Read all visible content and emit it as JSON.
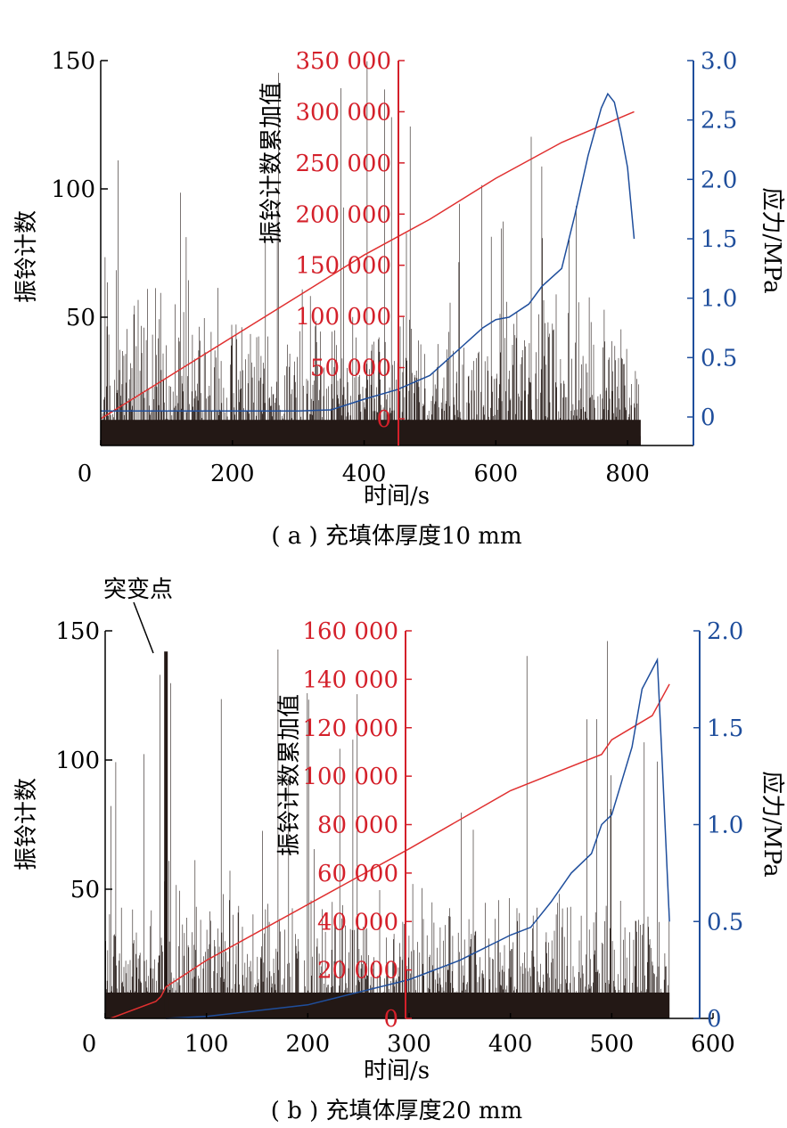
{
  "chart_data": [
    {
      "type": "line",
      "caption": "( a ) 充填体厚度10 mm",
      "xlabel": "时间/s",
      "xlim": [
        0,
        900
      ],
      "xticks": [
        0,
        200,
        400,
        600,
        800
      ],
      "axes": {
        "left": {
          "label": "振铃计数",
          "ylim": [
            0,
            150
          ],
          "ticks": [
            50,
            100,
            150
          ],
          "color": "#000000"
        },
        "middle": {
          "label": "振铃计数累加值",
          "ylim": [
            -20000,
            350000
          ],
          "ticks": [
            0,
            50000,
            100000,
            150000,
            200000,
            250000,
            300000,
            350000
          ],
          "tick_labels": [
            "0",
            "50 000",
            "100 000",
            "150 000",
            "200 000",
            "250 000",
            "300 000",
            "350 000"
          ],
          "color": "#d4202a"
        },
        "right": {
          "label": "应力/MPa",
          "ylim": [
            -0.25,
            3.0
          ],
          "ticks": [
            0,
            0.5,
            1.0,
            1.5,
            2.0,
            2.5,
            3.0
          ],
          "tick_labels": [
            "0",
            "0.5",
            "1.0",
            "1.5",
            "2.0",
            "2.5",
            "3.0"
          ],
          "color": "#1f4e9c"
        }
      },
      "series": [
        {
          "role": "ringing_count",
          "axis": "left",
          "color": "#231815",
          "x_range": [
            0,
            820
          ],
          "typical": [
            2,
            65
          ],
          "max": 150
        },
        {
          "role": "cumulative",
          "axis": "middle",
          "color": "#e03030",
          "x": [
            0,
            100,
            200,
            300,
            400,
            500,
            600,
            700,
            810
          ],
          "y": [
            0,
            40000,
            80000,
            120000,
            160000,
            195000,
            235000,
            270000,
            300000
          ]
        },
        {
          "role": "stress",
          "axis": "right",
          "color": "#1f4e9c",
          "x": [
            0,
            100,
            200,
            300,
            350,
            400,
            450,
            500,
            550,
            580,
            600,
            620,
            650,
            670,
            700,
            720,
            740,
            760,
            770,
            780,
            790,
            800,
            810
          ],
          "y": [
            0.05,
            0.05,
            0.05,
            0.05,
            0.06,
            0.15,
            0.23,
            0.35,
            0.6,
            0.75,
            0.82,
            0.84,
            0.95,
            1.1,
            1.25,
            1.7,
            2.2,
            2.6,
            2.72,
            2.65,
            2.4,
            2.1,
            1.5
          ]
        }
      ]
    },
    {
      "type": "line",
      "caption": "( b ) 充填体厚度20 mm",
      "annotation": "突变点",
      "annotation_x": 60,
      "xlabel": "时间/s",
      "xlim": [
        0,
        600
      ],
      "xticks": [
        0,
        100,
        200,
        300,
        400,
        500,
        600
      ],
      "axes": {
        "left": {
          "label": "振铃计数",
          "ylim": [
            0,
            150
          ],
          "ticks": [
            50,
            100,
            150
          ],
          "color": "#000000"
        },
        "middle": {
          "label": "振铃计数累加值",
          "ylim": [
            0,
            160000
          ],
          "ticks": [
            0,
            20000,
            40000,
            60000,
            80000,
            100000,
            120000,
            140000,
            160000
          ],
          "tick_labels": [
            "0",
            "20 000",
            "40 000",
            "60 000",
            "80 000",
            "100 000",
            "120 000",
            "140 000",
            "160 000"
          ],
          "color": "#d4202a"
        },
        "right": {
          "label": "应力/MPa",
          "ylim": [
            0,
            2.0
          ],
          "ticks": [
            0,
            0.5,
            1.0,
            1.5,
            2.0
          ],
          "tick_labels": [
            "0",
            "0.5",
            "1.0",
            "1.5",
            "2.0"
          ],
          "color": "#1f4e9c"
        }
      },
      "series": [
        {
          "role": "ringing_count",
          "axis": "left",
          "color": "#231815",
          "x_range": [
            0,
            557
          ],
          "typical": [
            2,
            55
          ],
          "max": 150
        },
        {
          "role": "cumulative",
          "axis": "middle",
          "color": "#e03030",
          "x": [
            5,
            50,
            55,
            60,
            100,
            200,
            300,
            400,
            490,
            500,
            540,
            557
          ],
          "y": [
            0,
            7000,
            9000,
            13000,
            24000,
            47000,
            70000,
            94000,
            109000,
            115000,
            125000,
            138000
          ]
        },
        {
          "role": "stress",
          "axis": "right",
          "color": "#1f4e9c",
          "x": [
            60,
            100,
            200,
            300,
            350,
            400,
            420,
            440,
            460,
            480,
            490,
            500,
            520,
            530,
            540,
            545,
            550,
            557
          ],
          "y": [
            0,
            0.01,
            0.07,
            0.2,
            0.3,
            0.43,
            0.47,
            0.6,
            0.75,
            0.85,
            1.0,
            1.05,
            1.4,
            1.7,
            1.8,
            1.85,
            1.3,
            0.5
          ]
        }
      ]
    }
  ]
}
